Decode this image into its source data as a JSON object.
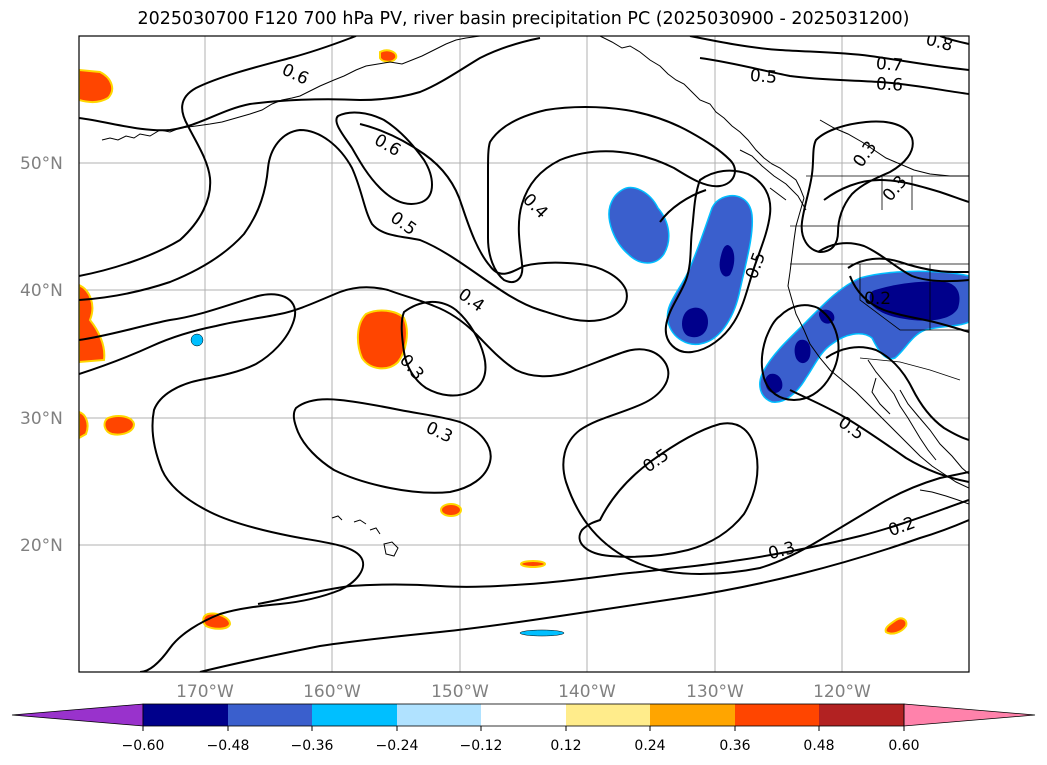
{
  "title": "2025030700 F120 700 hPa PV, river basin precipitation PC (2025030900 - 2025031200)",
  "map": {
    "lat_labels": [
      "50°N",
      "40°N",
      "30°N",
      "20°N"
    ],
    "lon_labels": [
      "170°W",
      "160°W",
      "150°W",
      "140°W",
      "130°W",
      "120°W"
    ],
    "contour_labels": [
      "0.6",
      "0.6",
      "0.5",
      "0.4",
      "0.4",
      "0.3",
      "0.3",
      "0.5",
      "0.5",
      "0.3",
      "0.2",
      "0.5",
      "0.7",
      "0.6",
      "0.8",
      "0.3",
      "0.3",
      "0.2",
      "0.5"
    ],
    "colors": {
      "land_outline": "#000000",
      "grid": "#b0b0b0",
      "contour": "#000000",
      "negative_fill": "#3a5fcd",
      "negative_core": "#00008b",
      "negative_edge": "#00bfff",
      "positive_fill": "#ff4500",
      "positive_edge": "#ffd700"
    }
  },
  "colorbar": {
    "tick_labels": [
      "−0.60",
      "−0.48",
      "−0.36",
      "−0.24",
      "−0.12",
      "0.12",
      "0.24",
      "0.36",
      "0.48",
      "0.60"
    ],
    "colors": [
      "#9932cc",
      "#00008b",
      "#3a5fcd",
      "#00bfff",
      "#b0e2ff",
      "#ffffff",
      "#ffec8b",
      "#ffa500",
      "#ff4500",
      "#b22222",
      "#ff82ab"
    ]
  }
}
